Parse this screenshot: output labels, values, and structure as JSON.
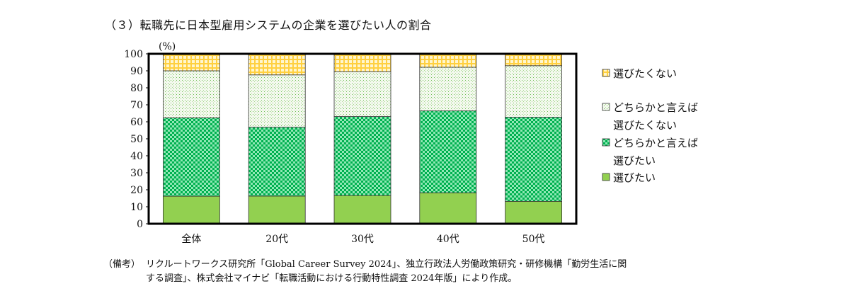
{
  "title": "（３）転職先に日本型雇用システムの企業を選びたい人の割合",
  "chart_data": {
    "type": "bar",
    "stacked": true,
    "categories": [
      "全体",
      "20代",
      "30代",
      "40代",
      "50代"
    ],
    "ylim": [
      0,
      100
    ],
    "yticks": [
      0,
      10,
      20,
      30,
      40,
      50,
      60,
      70,
      80,
      90,
      100
    ],
    "yunit": "(%)",
    "legend_position": "right",
    "series": [
      {
        "name": "選びたい",
        "values": [
          16.2,
          16.3,
          16.6,
          18.2,
          13.2
        ],
        "color": "#92d050",
        "pattern": "solid"
      },
      {
        "name": "どちらかと言えば選びたい",
        "values": [
          46.1,
          40.5,
          46.5,
          48.2,
          49.5
        ],
        "color": "#00b050",
        "pattern": "checker"
      },
      {
        "name": "どちらかと言えば選びたくない",
        "values": [
          27.7,
          30.8,
          26.4,
          25.7,
          30.3
        ],
        "color": "#c6e0b4",
        "pattern": "dots"
      },
      {
        "name": "選びたくない",
        "values": [
          10.0,
          12.4,
          10.5,
          7.9,
          7.0
        ],
        "color": "#ffc000",
        "pattern": "grid"
      }
    ],
    "legend": [
      {
        "lines": [
          "選びたくない"
        ]
      },
      {
        "lines": [
          "どちらかと言えば",
          "選びたくない"
        ]
      },
      {
        "lines": [
          "どちらかと言えば",
          "選びたい"
        ]
      },
      {
        "lines": [
          "選びたい"
        ]
      }
    ]
  },
  "notes": {
    "label": "（備考）",
    "line1": "リクルートワークス研究所「Global Career Survey 2024」、独立行政法人労働政策研究・研修機構「勤労生活に関",
    "line2": "する調査」、株式会社マイナビ「転職活動における行動特性調査 2024年版」により作成。"
  }
}
